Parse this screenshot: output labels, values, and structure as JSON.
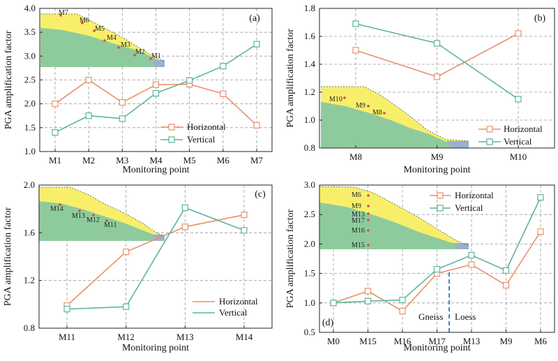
{
  "colors": {
    "horizontal": "#e8906a",
    "vertical": "#5bb59a",
    "slope_upper": "#f7ef6a",
    "slope_lower": "#8ecb9c",
    "slope_bedrock": "#9ab0cc",
    "boundary": "#4a7fc4"
  },
  "chart_data": [
    {
      "type": "line",
      "panel_label": "(a)",
      "xlabel": "Monitoring point",
      "ylabel": "PGA amplification factor",
      "categories": [
        "M1",
        "M2",
        "M3",
        "M4",
        "M5",
        "M6",
        "M7"
      ],
      "ylim": [
        1.0,
        4.0
      ],
      "yticks": [
        "1.0",
        "1.5",
        "2.0",
        "2.5",
        "3.0",
        "3.5",
        "4.0"
      ],
      "grid": true,
      "legend_position": "lower-right",
      "series": [
        {
          "name": "Horizontal",
          "values": [
            2.0,
            2.5,
            2.03,
            2.4,
            2.41,
            2.21,
            1.55
          ]
        },
        {
          "name": "Vertical",
          "values": [
            1.4,
            1.75,
            1.69,
            2.22,
            2.49,
            2.79,
            3.25
          ]
        }
      ],
      "inset_points": [
        "M7",
        "M6",
        "M5",
        "M4",
        "M3",
        "M2",
        "M1"
      ]
    },
    {
      "type": "line",
      "panel_label": "(b)",
      "xlabel": "Monitoring point",
      "ylabel": "PGA amplification factor",
      "categories": [
        "M8",
        "M9",
        "M10"
      ],
      "ylim": [
        0.8,
        1.8
      ],
      "yticks": [
        "0.8",
        "1.0",
        "1.2",
        "1.4",
        "1.6",
        "1.8"
      ],
      "grid": true,
      "legend_position": "lower-right",
      "series": [
        {
          "name": "Horizontal",
          "values": [
            1.5,
            1.31,
            1.62
          ]
        },
        {
          "name": "Vertical",
          "values": [
            1.69,
            1.55,
            1.15
          ]
        }
      ],
      "inset_points": [
        "M10",
        "M9",
        "M8"
      ]
    },
    {
      "type": "line",
      "panel_label": "(c)",
      "xlabel": "Monitoring point",
      "ylabel": "PGA amplification factor",
      "categories": [
        "M11",
        "M12",
        "M13",
        "M14"
      ],
      "ylim": [
        0.8,
        2.0
      ],
      "yticks": [
        "0.8",
        "1.2",
        "1.6",
        "2.0"
      ],
      "grid": true,
      "legend_position": "lower-right",
      "series": [
        {
          "name": "Horizontal",
          "values": [
            0.99,
            1.44,
            1.65,
            1.75
          ]
        },
        {
          "name": "Vertical",
          "values": [
            0.96,
            0.98,
            1.81,
            1.62
          ]
        }
      ],
      "inset_points": [
        "M14",
        "M13",
        "M12",
        "M11"
      ]
    },
    {
      "type": "line",
      "panel_label": "(d)",
      "xlabel": "Monitoring point",
      "ylabel": "PGA amplification factor",
      "categories": [
        "M0",
        "M15",
        "M16",
        "M17",
        "M13",
        "M9",
        "M6"
      ],
      "ylim": [
        0.5,
        3.0
      ],
      "yticks": [
        "0.5",
        "1.0",
        "1.5",
        "2.0",
        "2.5",
        "3.0"
      ],
      "grid": true,
      "legend_position": "top-center",
      "series": [
        {
          "name": "Horizontal",
          "values": [
            1.0,
            1.2,
            0.86,
            1.5,
            1.65,
            1.3,
            2.21
          ]
        },
        {
          "name": "Vertical",
          "values": [
            1.0,
            1.03,
            1.05,
            1.57,
            1.81,
            1.55,
            2.79
          ]
        }
      ],
      "inset_points": [
        "M6",
        "M9",
        "M13",
        "M17",
        "M16",
        "M15"
      ],
      "annotations": [
        "Gneiss",
        "Loess"
      ]
    }
  ]
}
